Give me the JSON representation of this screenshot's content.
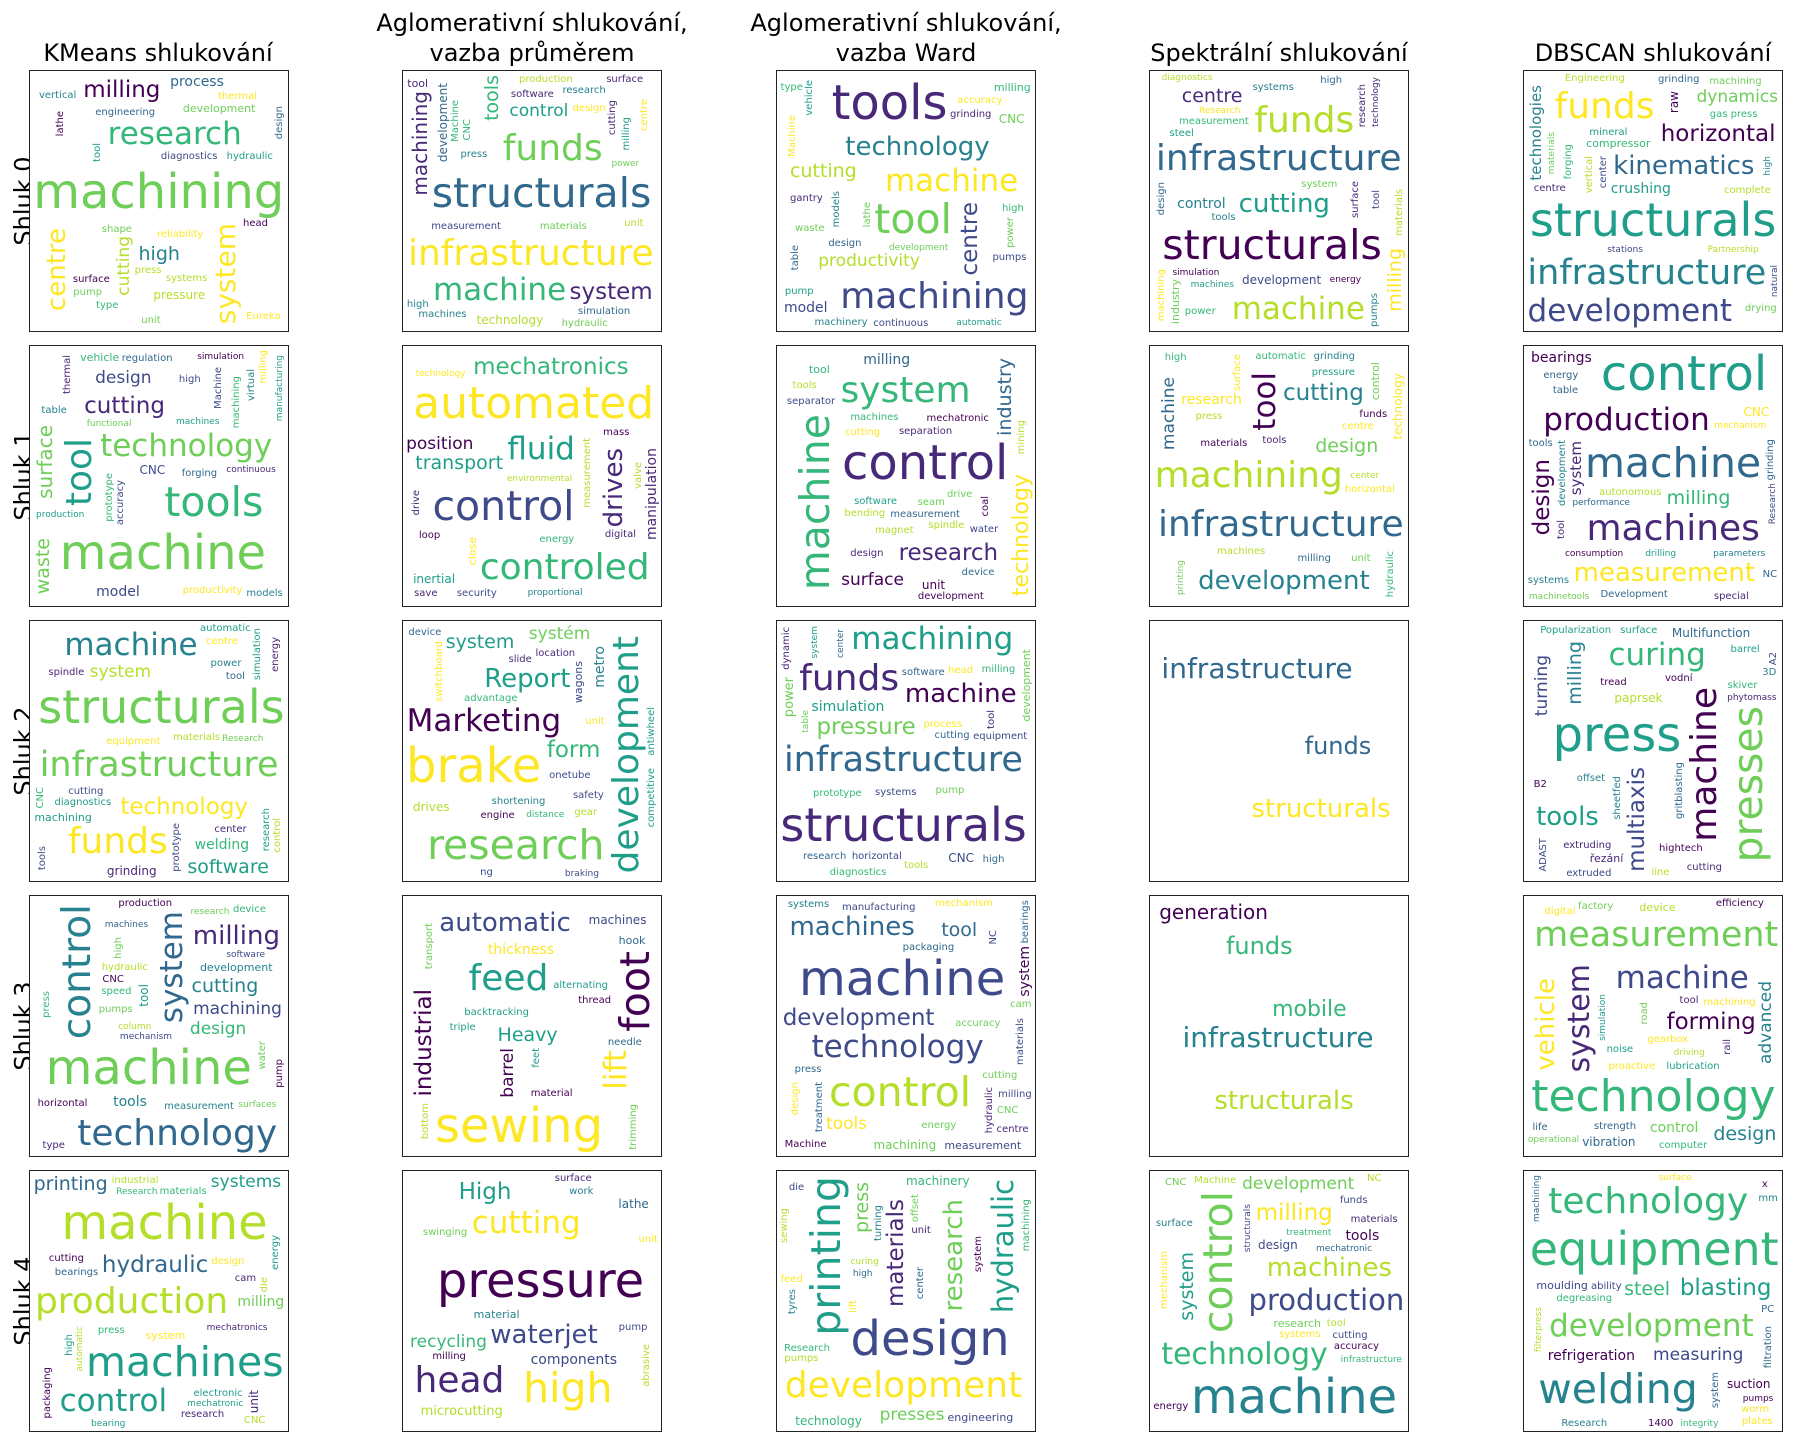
{
  "columns": [
    "KMeans shlukování",
    "Aglomerativní shlukování,\nvazba průměrem",
    "Aglomerativní shlukování,\nvazba Ward",
    "Spektrální shlukování",
    "DBSCAN shlukování"
  ],
  "rows": [
    "Shluk 0",
    "Shluk 1",
    "Shluk 2",
    "Shluk 3",
    "Shluk 4"
  ],
  "palette": [
    "#440154",
    "#482878",
    "#3e4a89",
    "#31688e",
    "#26828e",
    "#1f9e89",
    "#35b779",
    "#6ece58",
    "#b5de2b",
    "#fde725"
  ],
  "clouds": [
    [
      "machining",
      "machine",
      "system",
      "research",
      "centre",
      "milling",
      "high",
      "cutting",
      "process",
      "pressure",
      "development",
      "tool",
      "lathe",
      "diagnostics",
      "head",
      "design",
      "unit",
      "press",
      "systems",
      "thermal",
      "Eureka",
      "hydraulic",
      "type",
      "reliability",
      "vertical",
      "surface",
      "pump",
      "engineering",
      "shape"
    ],
    [
      "infrastructure",
      "structurals",
      "funds",
      "machine",
      "machining",
      "system",
      "tools",
      "control",
      "development",
      "technology",
      "tool",
      "materials",
      "milling",
      "research",
      "production",
      "design",
      "centre",
      "surface",
      "press",
      "software",
      "Machine",
      "hydraulic",
      "cutting",
      "high",
      "simulation",
      "CNC",
      "machines",
      "unit",
      "measurement",
      "power"
    ],
    [
      "tools",
      "tool",
      "machining",
      "machine",
      "technology",
      "centre",
      "cutting",
      "productivity",
      "model",
      "CNC",
      "milling",
      "accuracy",
      "gantry",
      "waste",
      "pump",
      "Machine",
      "vehicle",
      "machinery",
      "pumps",
      "continuous",
      "models",
      "design",
      "type",
      "grinding",
      "power",
      "automatic",
      "table",
      "development",
      "high",
      "lathe"
    ],
    [
      "infrastructure",
      "structurals",
      "funds",
      "machine",
      "cutting",
      "milling",
      "centre",
      "technology",
      "control",
      "development",
      "industry",
      "power",
      "measurement",
      "surface",
      "machining",
      "research",
      "tools",
      "system",
      "systems",
      "design",
      "diagnostics",
      "simulation",
      "tool",
      "high",
      "energy",
      "steel",
      "materials",
      "pumps",
      "machines",
      "Research"
    ],
    [
      "structurals",
      "infrastructure",
      "funds",
      "development",
      "kinematics",
      "horizontal",
      "technologies",
      "dynamics",
      "crushing",
      "raw",
      "compressor",
      "machining",
      "forging",
      "vertical",
      "mineral",
      "gas press",
      "drying",
      "natural",
      "grinding",
      "materials",
      "complete",
      "high",
      "centre",
      "Engineering",
      "multiaxial",
      "Partnership",
      "Research",
      "stations",
      "center"
    ],
    [
      "machine",
      "tools",
      "tool",
      "technology",
      "surface",
      "cutting",
      "waste",
      "design",
      "model",
      "CNC",
      "vehicle",
      "milling",
      "machining",
      "Machine",
      "high",
      "thermal",
      "productivity",
      "prototype",
      "accuracy",
      "simulation",
      "forging",
      "virtual",
      "regulation",
      "table",
      "continuous",
      "models",
      "manufacturing",
      "functional",
      "machines",
      "production"
    ],
    [
      "automated",
      "control",
      "controled",
      "fluid",
      "drives",
      "mechatronics",
      "transport",
      "position",
      "manipulation",
      "inertial",
      "close",
      "mass",
      "loop",
      "save",
      "measurement",
      "energy",
      "drive",
      "valve",
      "digital",
      "security",
      "environmental",
      "proportional",
      "technology"
    ],
    [
      "control",
      "machine",
      "system",
      "machining",
      "technology",
      "research",
      "industry",
      "surface",
      "milling",
      "unit",
      "tool",
      "water",
      "separation",
      "mining",
      "coal",
      "machines",
      "spindle",
      "design",
      "drive",
      "magnet",
      "bending",
      "seam",
      "device",
      "cutting",
      "separator",
      "development",
      "software",
      "measurement",
      "mechatronic",
      "tools"
    ],
    [
      "infrastructure",
      "structurals",
      "machining",
      "tool",
      "development",
      "cutting",
      "design",
      "machine",
      "research",
      "technology",
      "control",
      "high",
      "machines",
      "hydraulic",
      "milling",
      "automatic",
      "unit",
      "materials",
      "funds",
      "tools",
      "press",
      "horizontal",
      "centre",
      "surface",
      "printing",
      "pressure",
      "center",
      "grinding"
    ],
    [
      "control",
      "machine",
      "machines",
      "production",
      "measurement",
      "design",
      "milling",
      "system",
      "bearings",
      "CNC",
      "machinetools",
      "energy",
      "table",
      "tool",
      "development",
      "Development",
      "special",
      "grinding",
      "NC",
      "systems",
      "performance",
      "parameters",
      "consumption",
      "drilling",
      "mechanism",
      "autonomous",
      "Research",
      "Grinding",
      "tools"
    ],
    [
      "structurals",
      "infrastructure",
      "funds",
      "machine",
      "development",
      "technology",
      "software",
      "system",
      "welding",
      "grinding",
      "machining",
      "tool",
      "tools",
      "spindle",
      "materials",
      "centre",
      "diagnostics",
      "research",
      "equipment",
      "power",
      "automatic",
      "control",
      "prototype",
      "energy",
      "center",
      "cutting",
      "CNC",
      "simulation",
      "Research"
    ],
    [
      "brake",
      "research",
      "development",
      "Marketing",
      "Report",
      "form",
      "system",
      "systém",
      "metro",
      "drives",
      "wagons",
      "switchboard",
      "shortening",
      "slide",
      "onetube",
      "safety",
      "gear",
      "unit",
      "device",
      "competitive",
      "antiwheel",
      "engine",
      "advantage",
      "location",
      "distance",
      "braking",
      "ng"
    ],
    [
      "structurals",
      "infrastructure",
      "funds",
      "machining",
      "machine",
      "pressure",
      "development",
      "power",
      "simulation",
      "CNC",
      "system",
      "tool",
      "pump",
      "research",
      "head",
      "milling",
      "process",
      "high",
      "diagnostics",
      "dynamic",
      "software",
      "prototype",
      "systems",
      "tools",
      "center",
      "horizontal",
      "equipment",
      "cutting",
      "table"
    ],
    [
      "infrastructure",
      "structurals",
      "funds"
    ],
    [
      "press",
      "presses",
      "machine",
      "curing",
      "tools",
      "multiaxis",
      "milling",
      "turning",
      "Multifunction",
      "paprsek",
      "řezání",
      "Popularization",
      "line",
      "hightech",
      "skiver",
      "offset",
      "3D",
      "vodní",
      "B2",
      "ADAST",
      "phytomass",
      "tread",
      "barrel",
      "A2",
      "extruding",
      "extruded",
      "gritblasting",
      "surface",
      "sheetfed",
      "cutting"
    ],
    [
      "machine",
      "control",
      "technology",
      "system",
      "milling",
      "machining",
      "cutting",
      "design",
      "tools",
      "tool",
      "development",
      "measurement",
      "horizontal",
      "production",
      "high",
      "type",
      "device",
      "hydraulic",
      "pumps",
      "column",
      "machines",
      "surfaces",
      "software",
      "water",
      "CNC",
      "pump",
      "speed",
      "mechanism",
      "research",
      "press"
    ],
    [
      "sewing",
      "foot",
      "feed",
      "lift",
      "automatic",
      "industrial",
      "Heavy",
      "barrel",
      "thickness",
      "machines",
      "hook",
      "triple",
      "material",
      "thread",
      "transport",
      "backtracking",
      "trimming",
      "bottom",
      "needle",
      "alternating",
      "feet"
    ],
    [
      "machine",
      "control",
      "production",
      "technology",
      "machines",
      "development",
      "tool",
      "tools",
      "system",
      "machining",
      "measurement",
      "accuracy",
      "manufacturing",
      "mechanism",
      "milling",
      "cam",
      "design",
      "treatment",
      "energy",
      "press",
      "CNC",
      "centre",
      "Machine",
      "systems",
      "cutting",
      "materials",
      "hydraulic",
      "NC",
      "packaging",
      "bearings"
    ],
    [
      "infrastructure",
      "structurals",
      "funds",
      "mobile",
      "generation"
    ],
    [
      "technology",
      "measurement",
      "system",
      "machine",
      "vehicle",
      "forming",
      "design",
      "advanced",
      "control",
      "vibration",
      "device",
      "gearbox",
      "efficiency",
      "lubrication",
      "tool",
      "road",
      "factory",
      "machining",
      "computer",
      "life",
      "strength",
      "digital",
      "noise",
      "rail",
      "simulation",
      "proactive",
      "driving",
      "operational",
      "fatigue",
      "experiment"
    ],
    [
      "machine",
      "machines",
      "production",
      "control",
      "development",
      "hydraulic",
      "printing",
      "systems",
      "milling",
      "unit",
      "system",
      "materials",
      "research",
      "design",
      "bearings",
      "cutting",
      "CNC",
      "cam",
      "mechatronics",
      "electronic",
      "packaging",
      "automatic",
      "industrial",
      "die",
      "high",
      "Research",
      "energy",
      "press",
      "bearing",
      "mechatronic"
    ],
    [
      "pressure",
      "high",
      "head",
      "cutting",
      "waterjet",
      "High",
      "microcutting",
      "recycling",
      "components",
      "lathe",
      "material",
      "pump",
      "abrasive",
      "swinging",
      "unit",
      "work",
      "milling",
      "surface"
    ],
    [
      "design",
      "printing",
      "development",
      "hydraulic",
      "research",
      "materials",
      "press",
      "presses",
      "technology",
      "machinery",
      "engineering",
      "Research",
      "die",
      "lift",
      "sewing",
      "turning",
      "curing",
      "offset",
      "feed",
      "machines",
      "tyres",
      "pumps",
      "unit",
      "system",
      "center",
      "high",
      "Engineering",
      "brake",
      "vertical",
      "machining"
    ],
    [
      "machine",
      "control",
      "technology",
      "production",
      "machines",
      "milling",
      "system",
      "development",
      "tools",
      "design",
      "research",
      "infrastructure",
      "materials",
      "CNC",
      "Machine",
      "accuracy",
      "surface",
      "energy",
      "systems",
      "cutting",
      "mechanism",
      "funds",
      "mechatronic",
      "NC",
      "structurals",
      "tool",
      "measurement",
      "treatment",
      "machining"
    ],
    [
      "equipment",
      "welding",
      "technology",
      "development",
      "extreme",
      "blasting",
      "steel",
      "measuring",
      "refrigeration",
      "suction",
      "moulding",
      "degreasing",
      "system",
      "worm",
      "1400",
      "Research",
      "filtration",
      "pumps",
      "filterpress",
      "segregation",
      "machining",
      "integrity",
      "surface",
      "ability",
      "mm",
      "PC",
      "plates",
      "automatization",
      "x"
    ]
  ]
}
